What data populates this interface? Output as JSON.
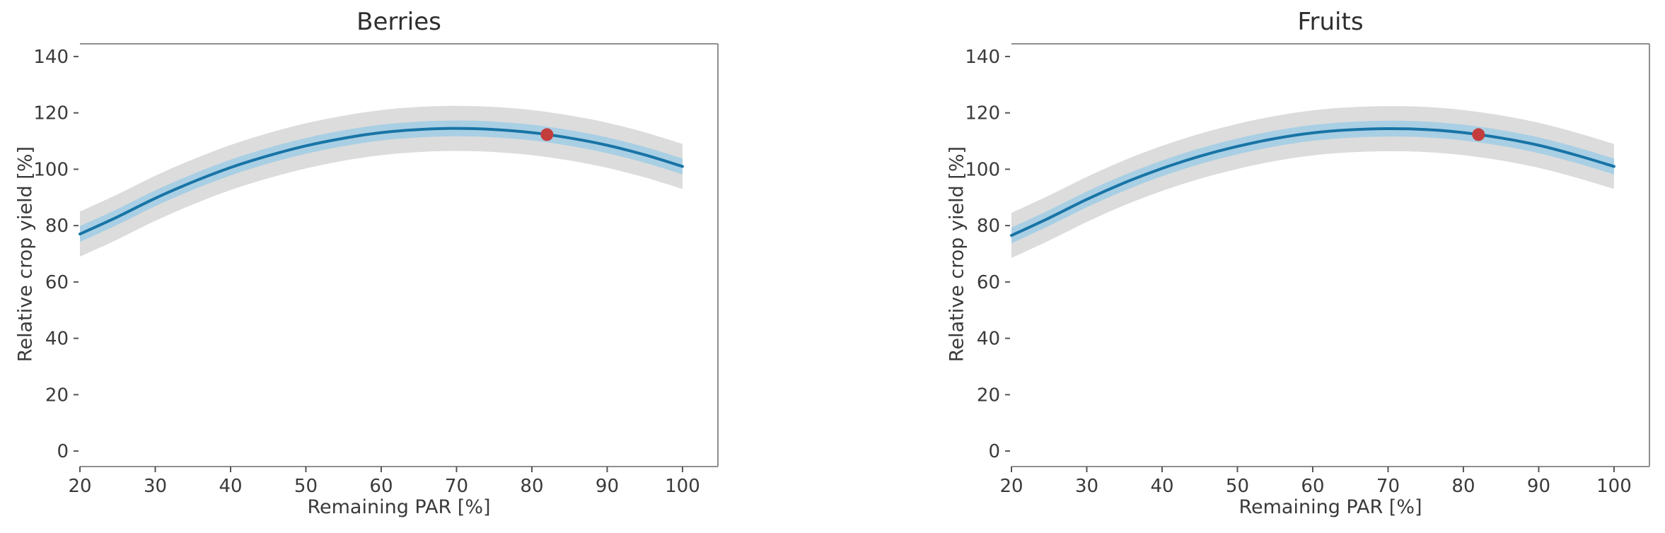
{
  "figure_background": "#ffffff",
  "chart_data": [
    {
      "type": "line",
      "title": "Berries",
      "xlabel": "Remaining PAR [%]",
      "ylabel": "Relative crop yield [%]",
      "xlim": [
        20,
        104.7
      ],
      "ylim": [
        -5.5,
        144.5
      ],
      "xticks": [
        20,
        30,
        40,
        50,
        60,
        70,
        80,
        90,
        100
      ],
      "yticks": [
        0,
        20,
        40,
        60,
        80,
        100,
        120,
        140
      ],
      "grid": false,
      "legend": null,
      "spines": {
        "left": false,
        "top": true,
        "right": true,
        "bottom": true
      },
      "x": [
        20,
        25,
        30,
        35,
        40,
        45,
        50,
        55,
        60,
        65,
        70,
        75,
        80,
        85,
        90,
        95,
        100
      ],
      "series": [
        {
          "name": "fitted relative crop yield",
          "color": "#1874a6",
          "values": [
            77.0,
            83.1,
            89.7,
            95.5,
            100.6,
            104.8,
            108.3,
            111.0,
            113.0,
            114.1,
            114.5,
            114.1,
            113.0,
            111.1,
            108.5,
            105.1,
            101.0
          ]
        }
      ],
      "bands": [
        {
          "name": "outer confidence band",
          "halfwidth": 8.0,
          "color": "#dcdcdc"
        },
        {
          "name": "inner confidence band",
          "halfwidth": 2.8,
          "color": "#a9cfe4"
        }
      ],
      "marker": {
        "x": 82,
        "y": 112.3,
        "color": "#c43d3d",
        "radius": 9
      }
    },
    {
      "type": "line",
      "title": "Fruits",
      "xlabel": "Remaining PAR [%]",
      "ylabel": "Relative crop yield [%]",
      "xlim": [
        20,
        104.7
      ],
      "ylim": [
        -5.5,
        144.5
      ],
      "xticks": [
        20,
        30,
        40,
        50,
        60,
        70,
        80,
        90,
        100
      ],
      "yticks": [
        0,
        20,
        40,
        60,
        80,
        100,
        120,
        140
      ],
      "grid": false,
      "legend": null,
      "spines": {
        "left": false,
        "top": true,
        "right": true,
        "bottom": true
      },
      "x": [
        20,
        25,
        30,
        35,
        40,
        45,
        50,
        55,
        60,
        65,
        70,
        75,
        80,
        85,
        90,
        95,
        100
      ],
      "series": [
        {
          "name": "fitted relative crop yield",
          "color": "#1874a6",
          "values": [
            76.5,
            82.7,
            89.3,
            95.2,
            100.3,
            104.6,
            108.1,
            110.9,
            112.9,
            114.0,
            114.4,
            114.1,
            113.0,
            111.1,
            108.5,
            105.0,
            101.0
          ]
        }
      ],
      "bands": [
        {
          "name": "outer confidence band",
          "halfwidth": 8.0,
          "color": "#dcdcdc"
        },
        {
          "name": "inner confidence band",
          "halfwidth": 2.8,
          "color": "#a9cfe4"
        }
      ],
      "marker": {
        "x": 82,
        "y": 112.3,
        "color": "#c43d3d",
        "radius": 9
      }
    }
  ],
  "style_colors": {
    "line_blue": "#1874a6",
    "inner_band_blue": "#a9cfe4",
    "outer_band_gray": "#dcdcdc",
    "marker_red": "#c43d3d",
    "spine_gray": "#8f8f8f",
    "tick_text": "#3a3a3a"
  }
}
